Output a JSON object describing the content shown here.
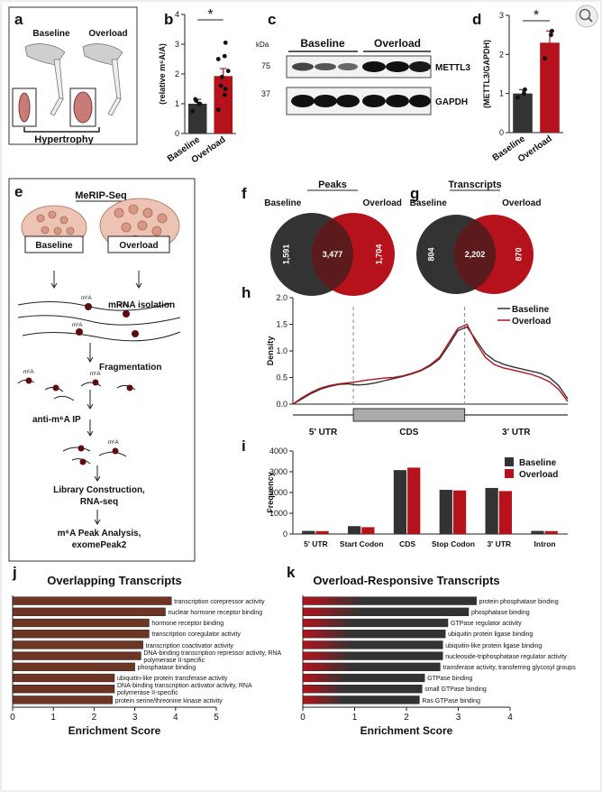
{
  "letters": [
    "a",
    "b",
    "c",
    "d",
    "e",
    "f",
    "g",
    "h",
    "i",
    "j",
    "k"
  ],
  "panel_a": {
    "baseline": "Baseline",
    "overload": "Overload",
    "caption": "Hypertrophy"
  },
  "panel_c": {
    "unit": "kDa",
    "baseline": "Baseline",
    "overload": "Overload",
    "marker_high": "75",
    "marker_low": "37",
    "protein_top": "METTL3",
    "protein_bottom": "GAPDH"
  },
  "panel_e": {
    "title": "MeRIP-Seq",
    "baseline": "Baseline",
    "overload": "Overload",
    "mark_label": "m⁶A",
    "steps": [
      "mRNA isolation",
      "Fragmentation",
      "anti-m⁶A IP",
      "Library Construction,",
      "RNA-seq",
      "m⁶A Peak Analysis,",
      "exomePeak2"
    ]
  },
  "chart_data": [
    {
      "type": "bar",
      "ylabel": "(relative m⁶A/A)",
      "categories": [
        "Baseline",
        "Overload"
      ],
      "values": [
        1.0,
        1.93
      ],
      "errors": [
        0.15,
        0.25
      ],
      "colors": [
        "#333333",
        "#b5121b"
      ],
      "points": [
        [
          0.75,
          1.0,
          1.0,
          1.15,
          1.1
        ],
        [
          0.8,
          1.3,
          1.5,
          1.6,
          1.9,
          2.1,
          2.5,
          2.6,
          3.05
        ]
      ],
      "ylim": [
        0,
        4
      ],
      "yticks": [
        0,
        1,
        2,
        3,
        4
      ],
      "significance": "*"
    },
    {
      "type": "bar",
      "ylabel": "(METTL3/GAPDH)",
      "categories": [
        "Baseline",
        "Overload"
      ],
      "values": [
        1.0,
        2.3
      ],
      "errors": [
        0.1,
        0.3
      ],
      "colors": [
        "#333333",
        "#b5121b"
      ],
      "points": [
        [
          0.9,
          1.0,
          1.1
        ],
        [
          1.9,
          2.5,
          2.6
        ]
      ],
      "ylim": [
        0,
        3
      ],
      "yticks": [
        0,
        1,
        2,
        3
      ],
      "significance": "*"
    },
    {
      "type": "venn",
      "title": "Peaks",
      "sets": [
        "Baseline",
        "Overload"
      ],
      "colors": [
        "#333333",
        "#b5121b"
      ],
      "values": [
        1591,
        3477,
        1704
      ],
      "value_labels": [
        "1,591",
        "3,477",
        "1,704"
      ]
    },
    {
      "type": "venn",
      "title": "Transcripts",
      "sets": [
        "Baseline",
        "Overload"
      ],
      "colors": [
        "#333333",
        "#b5121b"
      ],
      "values": [
        804,
        2202,
        870
      ],
      "value_labels": [
        "804",
        "2,202",
        "870"
      ]
    },
    {
      "type": "line",
      "ylabel": "Density",
      "regions": [
        "5' UTR",
        "CDS",
        "3' UTR"
      ],
      "ylim": [
        0,
        2
      ],
      "yticks": [
        {
          "value": 0,
          "label": "0.0"
        },
        0.5,
        {
          "value": 1,
          "label": "1.0"
        },
        1.5,
        {
          "value": 2,
          "label": "2.0"
        }
      ],
      "series": [
        {
          "name": "Baseline",
          "color": "#333333",
          "values": [
            0.0,
            0.1,
            0.2,
            0.28,
            0.33,
            0.37,
            0.38,
            0.36,
            0.37,
            0.4,
            0.44,
            0.48,
            0.52,
            0.57,
            0.63,
            0.72,
            0.85,
            1.1,
            1.38,
            1.45,
            1.2,
            0.95,
            0.82,
            0.75,
            0.7,
            0.66,
            0.62,
            0.58,
            0.5,
            0.35,
            0.1
          ]
        },
        {
          "name": "Overload",
          "color": "#b5121b",
          "values": [
            0.0,
            0.12,
            0.22,
            0.3,
            0.35,
            0.38,
            0.4,
            0.42,
            0.45,
            0.47,
            0.49,
            0.5,
            0.53,
            0.58,
            0.64,
            0.74,
            0.88,
            1.15,
            1.42,
            1.5,
            1.15,
            0.88,
            0.74,
            0.68,
            0.64,
            0.6,
            0.56,
            0.5,
            0.42,
            0.28,
            0.05
          ]
        }
      ]
    },
    {
      "type": "bar",
      "ylabel": "Frequency",
      "categories": [
        "5' UTR",
        "Start Codon",
        "CDS",
        "Stop Codon",
        "3' UTR",
        "Intron"
      ],
      "ylim": [
        0,
        4000
      ],
      "yticks": [
        0,
        1000,
        2000,
        3000,
        4000
      ],
      "series": [
        {
          "name": "Baseline",
          "color": "#333333",
          "values": [
            150,
            380,
            3080,
            2130,
            2220,
            150
          ]
        },
        {
          "name": "Overload",
          "color": "#b5121b",
          "values": [
            140,
            330,
            3200,
            2100,
            2070,
            140
          ]
        }
      ]
    },
    {
      "type": "barh",
      "title": "Overlapping Transcripts",
      "xlabel": "Enrichment Score",
      "color": "#6e3424",
      "categories": [
        "transcription corepressor activity",
        "nuclear hormone receptor binding",
        "hormone receptor binding",
        "transcription coregulator activity",
        "transcription coactivator activity",
        "DNA-binding transcription repressor activity, RNA polymerase II-specific",
        "phosphatase binding",
        "ubiquitin-like protein transferase activity",
        "DNA-binding transcription activator activity, RNA polymerase II-specific",
        "protein serine/threonine kinase activity"
      ],
      "values": [
        3.9,
        3.75,
        3.35,
        3.35,
        3.2,
        3.15,
        3.0,
        2.5,
        2.5,
        2.45
      ],
      "xlim": [
        0,
        5
      ],
      "xticks": [
        0,
        1,
        2,
        3,
        4,
        5
      ]
    },
    {
      "type": "barh",
      "title": "Overload-Responsive Transcripts",
      "xlabel": "Enrichment Score",
      "gradient": [
        "#b5121b",
        "#333333"
      ],
      "categories": [
        "protein phosphatase binding",
        "phosphatase binding",
        "GTPase regulator activity",
        "ubiquitin protein ligase binding",
        "ubiquitin-like protein ligase binding",
        "nucleoside-triphosphatase regulator activity",
        "transferase activity, transferring glycosyl groups",
        "GTPase binding",
        "small GTPase binding",
        "Ras GTPase binding"
      ],
      "values": [
        3.35,
        3.2,
        2.8,
        2.75,
        2.7,
        2.7,
        2.65,
        2.35,
        2.3,
        2.25
      ],
      "xlim": [
        0,
        4
      ],
      "xticks": [
        0,
        1,
        2,
        3,
        4
      ]
    }
  ]
}
